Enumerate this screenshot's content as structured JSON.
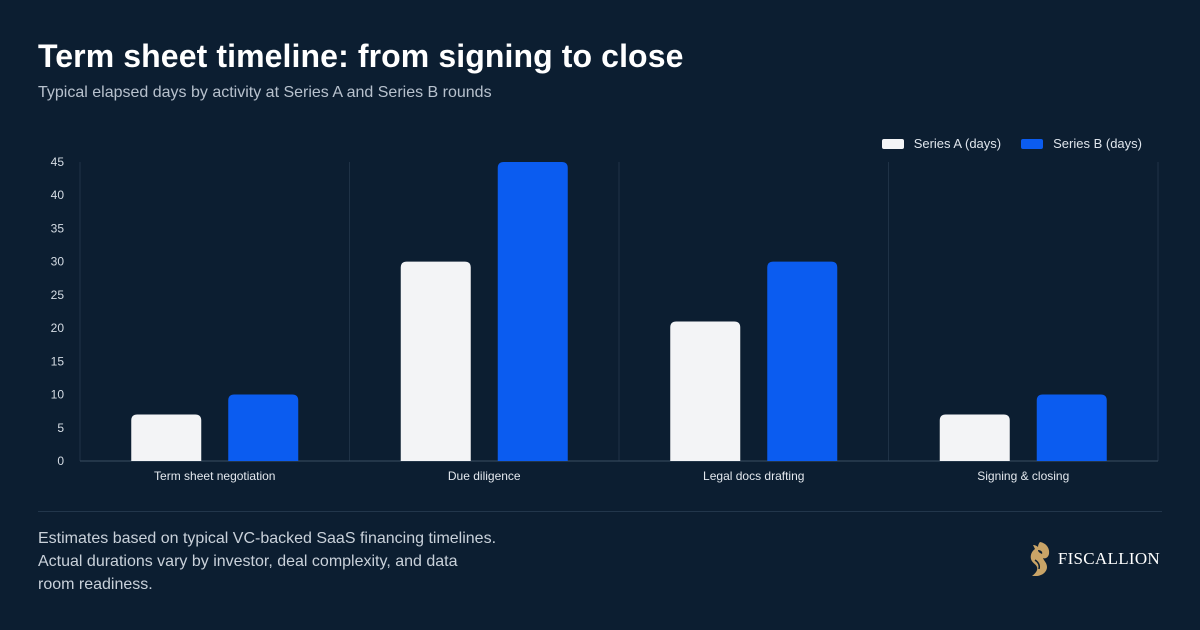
{
  "header": {
    "title": "Term sheet timeline: from signing to close",
    "subtitle": "Typical elapsed days by activity at Series A and Series B rounds"
  },
  "legend": {
    "items": [
      {
        "label": "Series A (days)",
        "color": "#f3f4f6"
      },
      {
        "label": "Series B (days)",
        "color": "#0b5cf0"
      }
    ]
  },
  "chart_data": {
    "type": "bar",
    "categories": [
      "Term sheet negotiation",
      "Due diligence",
      "Legal docs drafting",
      "Signing & closing"
    ],
    "series": [
      {
        "name": "Series A (days)",
        "values": [
          7,
          30,
          21,
          7
        ],
        "color": "#f3f4f6"
      },
      {
        "name": "Series B (days)",
        "values": [
          10,
          45,
          30,
          10
        ],
        "color": "#0b5cf0"
      }
    ],
    "title": "Term sheet timeline: from signing to close",
    "subtitle": "Typical elapsed days by activity at Series A and Series B rounds",
    "xlabel": "",
    "ylabel": "",
    "ylim": [
      0,
      45
    ],
    "yticks": [
      0,
      5,
      10,
      15,
      20,
      25,
      30,
      35,
      40,
      45
    ],
    "grid": "vertical category separators",
    "legend_position": "top-right"
  },
  "footer": {
    "note": "Estimates based on typical VC-backed SaaS financing timelines. Actual durations vary by investor, deal complexity, and data room readiness.",
    "brand_name": "FISCALLION",
    "logo_icon": "horse-head-logo-icon",
    "logo_color": "#c9a467"
  }
}
